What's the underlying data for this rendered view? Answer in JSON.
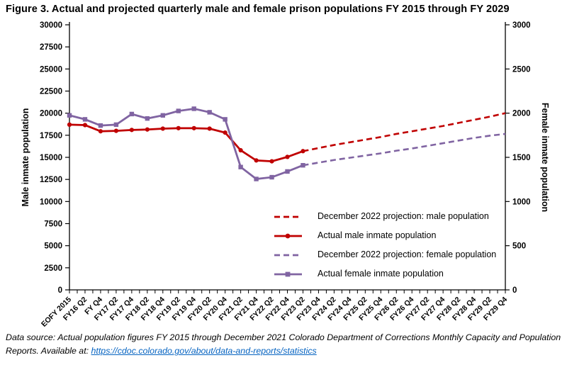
{
  "figure": {
    "title": "Figure 3. Actual and projected quarterly male and female prison populations FY 2015 through FY 2029"
  },
  "footer": {
    "prefix": "Data source: Actual population figures FY 2015 through December 2021 Colorado Department of Corrections Monthly Capacity and Population Reports. Available at: ",
    "link": "https://cdoc.colorado.gov/about/data-and-reports/statistics",
    "link_color": "#0563C1"
  },
  "colors": {
    "male": "#C00000",
    "female": "#8064A2",
    "axis": "#000000"
  },
  "chart_data": {
    "type": "line",
    "title": "Figure 3. Actual and projected quarterly male and female prison populations FY 2015 through FY 2029",
    "grid": false,
    "legend_position": "inside-lower-right",
    "categories": [
      "EOFY 2015",
      "FY16 Q2",
      "FY Q4",
      "FY17 Q2",
      "FY17 Q4",
      "FY18 Q2",
      "FY18 Q4",
      "FY19 Q2",
      "FY19 Q4",
      "FY20 Q2",
      "FY20 Q4",
      "FY21 Q2",
      "FY21 Q4",
      "FY22 Q2",
      "FY22 Q4",
      "FY23 Q2",
      "FY23 Q4",
      "FY24 Q2",
      "FY24 Q4",
      "FY25 Q2",
      "FY25 Q4",
      "FY26 Q2",
      "FY26 Q4",
      "FY27 Q2",
      "FY27 Q4",
      "FY28 Q2",
      "FY28 Q4",
      "FY29 Q2",
      "FY29 Q4"
    ],
    "left_axis": {
      "label": "Male inmate population",
      "min": 0,
      "max": 30000,
      "step": 2500
    },
    "right_axis": {
      "label": "Female inmate population",
      "min": 0,
      "max": 3000,
      "step": 500
    },
    "series": [
      {
        "name": "December 2022 projection: male population",
        "axis": "left",
        "style": "dashed",
        "marker": "none",
        "color": "#C00000",
        "values": [
          null,
          null,
          null,
          null,
          null,
          null,
          null,
          null,
          null,
          null,
          null,
          null,
          null,
          null,
          null,
          15700,
          16050,
          16400,
          16700,
          17000,
          17300,
          17650,
          17950,
          18250,
          18550,
          18900,
          19250,
          19600,
          20000
        ]
      },
      {
        "name": "Actual male inmate population",
        "axis": "left",
        "style": "solid",
        "marker": "circle",
        "color": "#C00000",
        "values": [
          18700,
          18650,
          17950,
          18000,
          18100,
          18150,
          18250,
          18300,
          18300,
          18250,
          17800,
          15800,
          14650,
          14550,
          15050,
          15700,
          null,
          null,
          null,
          null,
          null,
          null,
          null,
          null,
          null,
          null,
          null,
          null,
          null
        ]
      },
      {
        "name": "December 2022 projection: female population",
        "axis": "right",
        "style": "dashed",
        "marker": "none",
        "color": "#8064A2",
        "values": [
          null,
          null,
          null,
          null,
          null,
          null,
          null,
          null,
          null,
          null,
          null,
          null,
          null,
          null,
          null,
          1410,
          1440,
          1470,
          1495,
          1520,
          1545,
          1575,
          1600,
          1630,
          1660,
          1690,
          1720,
          1745,
          1765
        ]
      },
      {
        "name": "Actual female inmate population",
        "axis": "right",
        "style": "solid",
        "marker": "square",
        "color": "#8064A2",
        "values": [
          1975,
          1930,
          1860,
          1870,
          1990,
          1940,
          1975,
          2025,
          2050,
          2010,
          1930,
          1390,
          1255,
          1275,
          1340,
          1410,
          null,
          null,
          null,
          null,
          null,
          null,
          null,
          null,
          null,
          null,
          null,
          null,
          null
        ]
      }
    ]
  }
}
